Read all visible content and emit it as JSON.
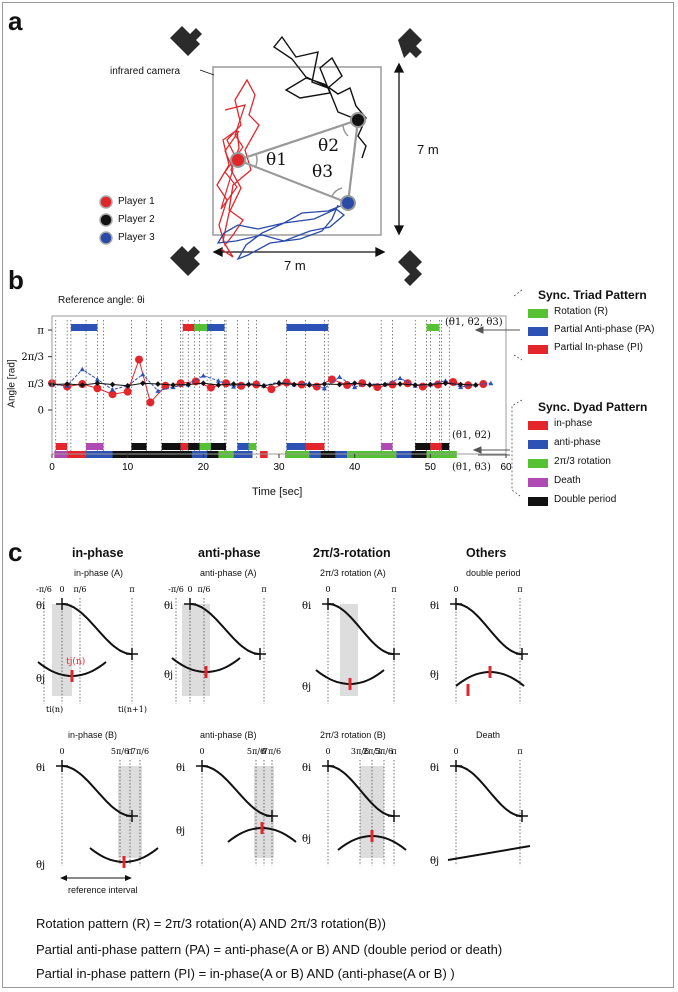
{
  "panel_a": {
    "label": "a",
    "camera_label": "infrared camera",
    "side_label_right": "7 m",
    "side_label_bottom": "7 m",
    "theta_labels": [
      "θ1",
      "θ2",
      "θ3"
    ],
    "players": [
      {
        "name": "Player 1",
        "color": "#e0262b"
      },
      {
        "name": "Player 2",
        "color": "#111111"
      },
      {
        "name": "Player 3",
        "color": "#2a4aa8"
      }
    ]
  },
  "panel_b": {
    "label": "b",
    "reference_text": "Reference angle: θi",
    "triad_title": "Sync. Triad Pattern",
    "triad_legend": [
      {
        "label": "Rotation (R)",
        "color": "#56c233"
      },
      {
        "label": "Partial Anti-phase (PA)",
        "color": "#2d52b5"
      },
      {
        "label": "Partial In-phase (PI)",
        "color": "#e4252b"
      }
    ],
    "dyad_title": "Sync. Dyad Pattern",
    "dyad_legend": [
      {
        "label": "in-phase",
        "color": "#e4252b"
      },
      {
        "label": "anti-phase",
        "color": "#2d52b5"
      },
      {
        "label": "2π/3 rotation",
        "color": "#56c233"
      },
      {
        "label": "Death",
        "color": "#b04ab3"
      },
      {
        "label": "Double period",
        "color": "#111111"
      }
    ],
    "row_labels": [
      "(θ1, θ2, θ3)",
      "(θ1, θ2)",
      "(θ1, θ3)"
    ],
    "chart_data": {
      "type": "line",
      "xlabel": "Time [sec]",
      "ylabel": "Angle [rad]",
      "xlim": [
        0,
        60
      ],
      "x_ticks": [
        "0",
        "10",
        "20",
        "30",
        "40",
        "50",
        "60"
      ],
      "y_ticks": [
        "0",
        "π/3",
        "2π/3",
        "π"
      ],
      "ylim": [
        0,
        3.1416
      ],
      "series": [
        {
          "color": "#e4252b",
          "x": [
            0,
            2,
            4,
            6,
            8,
            10,
            11.5,
            13,
            15,
            17,
            19,
            21,
            23,
            25,
            27,
            29,
            31,
            33,
            35,
            37,
            39,
            41,
            43,
            45,
            47,
            49,
            51,
            53,
            55,
            57
          ],
          "values": [
            1.05,
            0.92,
            1.02,
            0.85,
            0.62,
            0.72,
            1.98,
            0.3,
            0.95,
            1.05,
            1.12,
            0.88,
            1.05,
            0.95,
            1.0,
            0.82,
            1.08,
            1.0,
            0.92,
            1.2,
            0.98,
            1.05,
            0.9,
            1.0,
            1.05,
            0.92,
            1.0,
            1.1,
            0.97,
            1.02
          ]
        },
        {
          "color": "#2d52b5",
          "x": [
            0,
            2,
            4,
            6,
            8,
            10,
            12,
            14,
            16,
            18,
            20,
            22,
            24,
            26,
            28,
            30,
            32,
            34,
            36,
            38,
            40,
            42,
            44,
            46,
            48,
            50,
            52,
            54,
            56,
            58
          ],
          "values": [
            1.0,
            0.95,
            1.6,
            1.2,
            0.8,
            0.95,
            1.4,
            0.75,
            0.9,
            1.0,
            1.35,
            1.15,
            0.92,
            1.05,
            0.95,
            1.1,
            1.0,
            1.05,
            0.85,
            1.3,
            0.9,
            1.02,
            1.0,
            1.25,
            0.95,
            1.0,
            1.15,
            0.9,
            1.0,
            1.05
          ]
        },
        {
          "color": "#111111",
          "x": [
            0,
            2,
            4,
            6,
            8,
            10,
            12,
            14,
            16,
            18,
            20,
            22,
            24,
            26,
            28,
            30,
            32,
            34,
            36,
            38,
            40,
            42,
            44,
            46,
            48,
            50,
            52,
            54,
            56
          ],
          "values": [
            1.0,
            1.02,
            0.98,
            1.05,
            1.0,
            0.95,
            1.05,
            1.02,
            0.98,
            1.0,
            1.05,
            0.98,
            1.02,
            1.0,
            0.95,
            1.05,
            1.0,
            0.98,
            1.02,
            1.0,
            1.05,
            0.98,
            1.0,
            1.02,
            0.98,
            1.0,
            1.05,
            1.0,
            0.98
          ]
        }
      ],
      "triad_bars": [
        {
          "start": 2.5,
          "end": 6.0,
          "pattern": "PA"
        },
        {
          "start": 17.3,
          "end": 18.8,
          "pattern": "PI"
        },
        {
          "start": 18.8,
          "end": 20.5,
          "pattern": "R"
        },
        {
          "start": 20.5,
          "end": 22.8,
          "pattern": "PA"
        },
        {
          "start": 31.0,
          "end": 36.5,
          "pattern": "PA"
        },
        {
          "start": 49.5,
          "end": 51.2,
          "pattern": "R"
        }
      ],
      "dyad12_bars": [
        {
          "start": 0.5,
          "end": 2.0,
          "pattern": "in-phase"
        },
        {
          "start": 4.5,
          "end": 6.8,
          "pattern": "Death"
        },
        {
          "start": 10.5,
          "end": 12.5,
          "pattern": "Double period"
        },
        {
          "start": 14.5,
          "end": 17.0,
          "pattern": "Double period"
        },
        {
          "start": 17.0,
          "end": 18.0,
          "pattern": "in-phase"
        },
        {
          "start": 18.0,
          "end": 19.5,
          "pattern": "Double period"
        },
        {
          "start": 19.5,
          "end": 21.0,
          "pattern": "2π/3 rotation"
        },
        {
          "start": 21.0,
          "end": 23.0,
          "pattern": "Double period"
        },
        {
          "start": 24.5,
          "end": 26.0,
          "pattern": "anti-phase"
        },
        {
          "start": 26.0,
          "end": 27.0,
          "pattern": "2π/3 rotation"
        },
        {
          "start": 31.0,
          "end": 33.5,
          "pattern": "anti-phase"
        },
        {
          "start": 33.5,
          "end": 36.0,
          "pattern": "in-phase"
        },
        {
          "start": 43.5,
          "end": 45.0,
          "pattern": "Death"
        },
        {
          "start": 48.0,
          "end": 50.0,
          "pattern": "Double period"
        },
        {
          "start": 50.0,
          "end": 51.5,
          "pattern": "in-phase"
        },
        {
          "start": 51.5,
          "end": 52.5,
          "pattern": "Double period"
        }
      ],
      "dyad13_bars": [
        {
          "start": 0.3,
          "end": 2.0,
          "pattern": "Death"
        },
        {
          "start": 2.0,
          "end": 4.5,
          "pattern": "in-phase"
        },
        {
          "start": 4.5,
          "end": 8.0,
          "pattern": "anti-phase"
        },
        {
          "start": 8.0,
          "end": 18.5,
          "pattern": "Double period"
        },
        {
          "start": 18.5,
          "end": 20.5,
          "pattern": "anti-phase"
        },
        {
          "start": 20.5,
          "end": 22.0,
          "pattern": "Double period"
        },
        {
          "start": 22.0,
          "end": 24.0,
          "pattern": "2π/3 rotation"
        },
        {
          "start": 24.0,
          "end": 26.5,
          "pattern": "anti-phase"
        },
        {
          "start": 27.5,
          "end": 28.5,
          "pattern": "in-phase"
        },
        {
          "start": 30.8,
          "end": 34.0,
          "pattern": "2π/3 rotation"
        },
        {
          "start": 34.0,
          "end": 35.5,
          "pattern": "anti-phase"
        },
        {
          "start": 35.5,
          "end": 37.5,
          "pattern": "Double period"
        },
        {
          "start": 37.5,
          "end": 39.0,
          "pattern": "anti-phase"
        },
        {
          "start": 39.0,
          "end": 45.5,
          "pattern": "2π/3 rotation"
        },
        {
          "start": 45.5,
          "end": 47.5,
          "pattern": "anti-phase"
        },
        {
          "start": 47.5,
          "end": 49.5,
          "pattern": "Double period"
        },
        {
          "start": 49.5,
          "end": 53.5,
          "pattern": "2π/3 rotation"
        }
      ]
    }
  },
  "panel_c": {
    "label": "c",
    "columns": [
      "in-phase",
      "anti-phase",
      "2π/3-rotation",
      "Others"
    ],
    "top_titles": [
      "in-phase (A)",
      "anti-phase (A)",
      "2π/3 rotation (A)",
      "double period"
    ],
    "bottom_titles": [
      "in-phase (B)",
      "anti-phase (B)",
      "2π/3 rotation (B)",
      "Death"
    ],
    "tick_labels_top_a": [
      "-π/6",
      "0",
      "π/6",
      "π"
    ],
    "tick_labels_top_b": [
      "-π/6",
      "0",
      "π/6",
      "π"
    ],
    "tick_labels_top_c": [
      "0",
      "π"
    ],
    "tick_labels_top_d": [
      "0",
      "π"
    ],
    "tick_labels_bot_a": [
      "0",
      "5π/6",
      "π",
      "7π/6"
    ],
    "tick_labels_bot_b": [
      "0",
      "5π/6",
      "π",
      "7π/6"
    ],
    "tick_labels_bot_c": [
      "0",
      "3π/6",
      "2π/3",
      "5π/6",
      "π"
    ],
    "tick_labels_bot_d": [
      "0",
      "π"
    ],
    "theta_i": "θi",
    "theta_j": "θj",
    "tj_label": "tj(n)",
    "ti_n": "ti(n)",
    "ti_n1": "ti(n+1)",
    "reference_interval": "reference interval"
  },
  "formulas": [
    "Rotation pattern (R) = 2π/3 rotation(A) AND 2π/3 rotation(B))",
    "Partial anti-phase pattern (PA) = anti-phase(A or B) AND (double period or death)",
    "Partial in-phase pattern (PI) = in-phase(A or B) AND (anti-phase(A or B) )"
  ]
}
